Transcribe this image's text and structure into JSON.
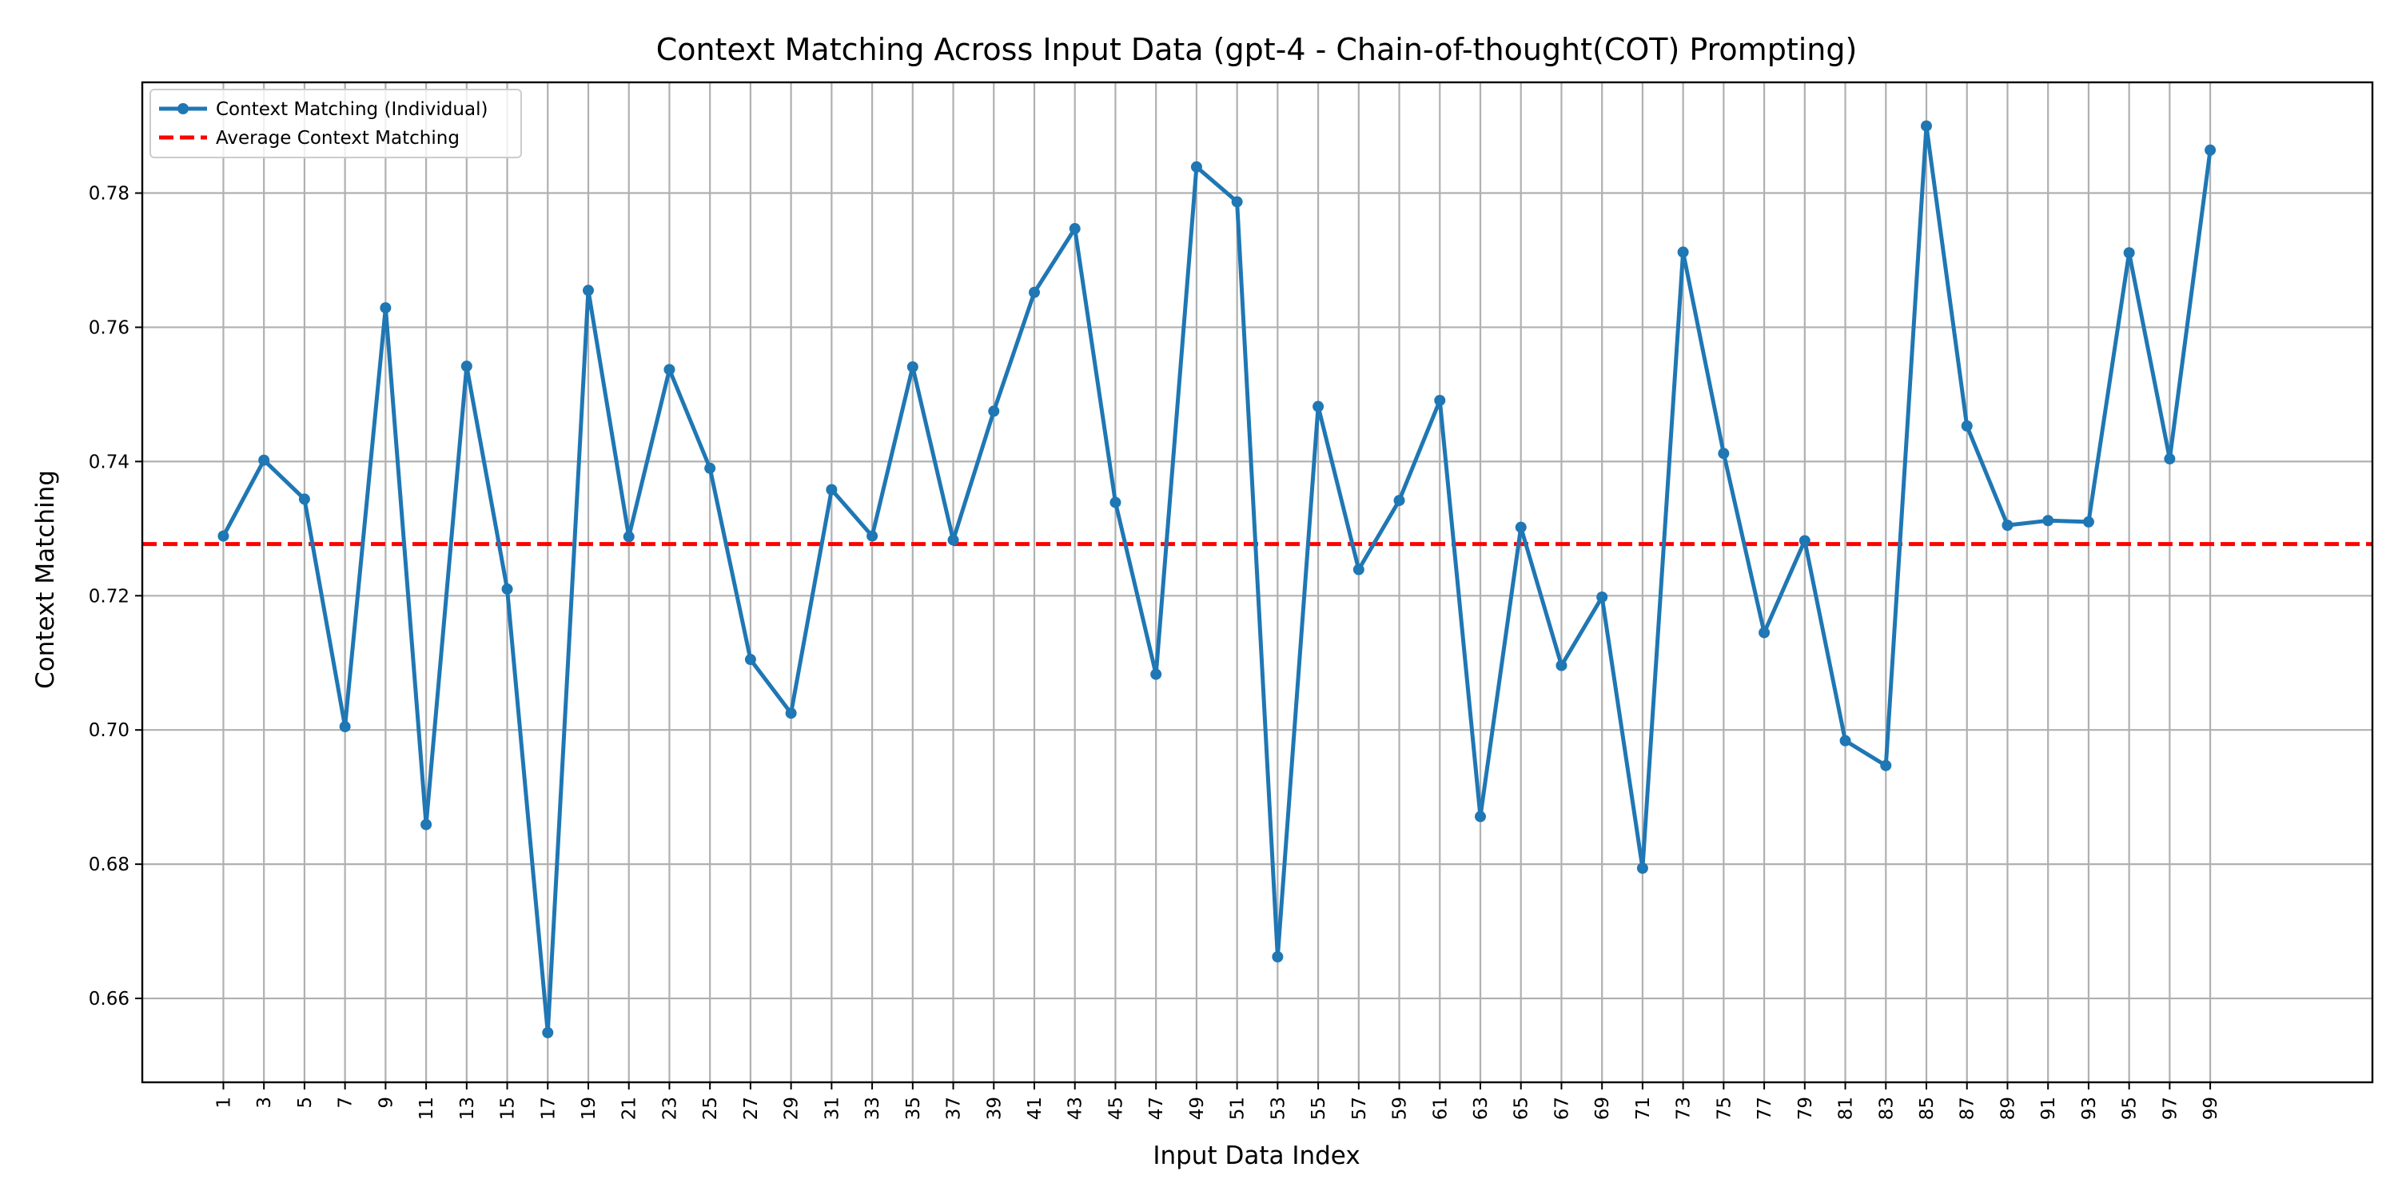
{
  "chart_data": {
    "type": "line",
    "title": "Context Matching Across Input Data (gpt-4 - Chain-of-thought(COT) Prompting)",
    "xlabel": "Input Data Index",
    "ylabel": "Context Matching",
    "xlim": [
      -3.0,
      107.0
    ],
    "ylim": [
      0.6475,
      0.7965
    ],
    "x_ticks": [
      1,
      3,
      5,
      7,
      9,
      11,
      13,
      15,
      17,
      19,
      21,
      23,
      25,
      27,
      29,
      31,
      33,
      35,
      37,
      39,
      41,
      43,
      45,
      47,
      49,
      51,
      53,
      55,
      57,
      59,
      61,
      63,
      65,
      67,
      69,
      71,
      73,
      75,
      77,
      79,
      81,
      83,
      85,
      87,
      89,
      91,
      93,
      95,
      97,
      99
    ],
    "y_ticks": [
      0.66,
      0.68,
      0.7,
      0.72,
      0.74,
      0.76,
      0.78
    ],
    "y_tick_labels": [
      "0.66",
      "0.68",
      "0.70",
      "0.72",
      "0.74",
      "0.76",
      "0.78"
    ],
    "grid": true,
    "legend_position": "top-left",
    "series": [
      {
        "name": "Context Matching (Individual)",
        "color": "#1f77b4",
        "style": "solid-with-markers",
        "x": [
          1,
          3,
          5,
          7,
          9,
          11,
          13,
          15,
          17,
          19,
          21,
          23,
          25,
          27,
          29,
          31,
          33,
          35,
          37,
          39,
          41,
          43,
          45,
          47,
          49,
          51,
          53,
          55,
          57,
          59,
          61,
          63,
          65,
          67,
          69,
          71,
          73,
          75,
          77,
          79,
          81,
          83,
          85,
          87,
          89,
          91,
          93,
          95,
          97,
          99
        ],
        "y": [
          0.7289,
          0.7402,
          0.7344,
          0.7005,
          0.7629,
          0.6859,
          0.7542,
          0.721,
          0.6549,
          0.7655,
          0.7288,
          0.7537,
          0.739,
          0.7105,
          0.7025,
          0.7358,
          0.7289,
          0.7541,
          0.7283,
          0.7475,
          0.7652,
          0.7747,
          0.7339,
          0.7083,
          0.7839,
          0.7787,
          0.6662,
          0.7482,
          0.7239,
          0.7342,
          0.7491,
          0.6871,
          0.7302,
          0.7096,
          0.7198,
          0.6794,
          0.7712,
          0.7412,
          0.7145,
          0.7282,
          0.6984,
          0.6947,
          0.79,
          0.7453,
          0.7305,
          0.7312,
          0.731,
          0.7711,
          0.7404,
          0.7864
        ]
      },
      {
        "name": "Average Context Matching",
        "color": "#ff0000",
        "style": "dashed",
        "y_constant": 0.7277
      }
    ]
  }
}
